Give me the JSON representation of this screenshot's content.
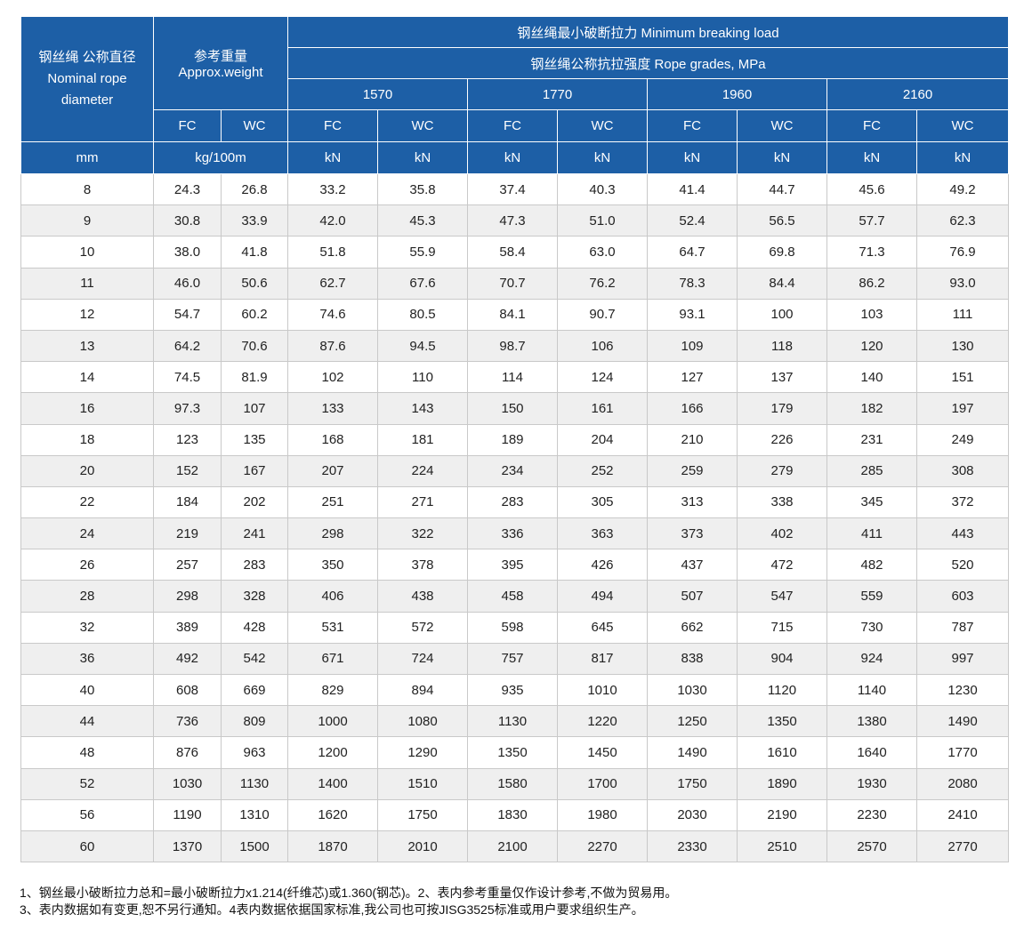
{
  "header": {
    "diameter_cn": "钢丝绳 公称直径",
    "diameter_en1": "Nominal rope",
    "diameter_en2": "diameter",
    "weight_cn": "参考重量",
    "weight_en": "Approx.weight",
    "mbl": "钢丝绳最小破断拉力 Minimum breaking load",
    "grades": "钢丝绳公称抗拉强度 Rope grades, MPa",
    "grade_values": [
      "1570",
      "1770",
      "1960",
      "2160"
    ],
    "core_labels": [
      "FC",
      "WC",
      "FC",
      "WC",
      "FC",
      "WC",
      "FC",
      "WC",
      "FC",
      "WC"
    ],
    "unit_diameter": "mm",
    "unit_weight": "kg/100m",
    "unit_load": [
      "kN",
      "kN",
      "kN",
      "kN",
      "kN",
      "kN",
      "kN",
      "kN"
    ]
  },
  "rows": [
    [
      "8",
      "24.3",
      "26.8",
      "33.2",
      "35.8",
      "37.4",
      "40.3",
      "41.4",
      "44.7",
      "45.6",
      "49.2"
    ],
    [
      "9",
      "30.8",
      "33.9",
      "42.0",
      "45.3",
      "47.3",
      "51.0",
      "52.4",
      "56.5",
      "57.7",
      "62.3"
    ],
    [
      "10",
      "38.0",
      "41.8",
      "51.8",
      "55.9",
      "58.4",
      "63.0",
      "64.7",
      "69.8",
      "71.3",
      "76.9"
    ],
    [
      "11",
      "46.0",
      "50.6",
      "62.7",
      "67.6",
      "70.7",
      "76.2",
      "78.3",
      "84.4",
      "86.2",
      "93.0"
    ],
    [
      "12",
      "54.7",
      "60.2",
      "74.6",
      "80.5",
      "84.1",
      "90.7",
      "93.1",
      "100",
      "103",
      "111"
    ],
    [
      "13",
      "64.2",
      "70.6",
      "87.6",
      "94.5",
      "98.7",
      "106",
      "109",
      "118",
      "120",
      "130"
    ],
    [
      "14",
      "74.5",
      "81.9",
      "102",
      "110",
      "114",
      "124",
      "127",
      "137",
      "140",
      "151"
    ],
    [
      "16",
      "97.3",
      "107",
      "133",
      "143",
      "150",
      "161",
      "166",
      "179",
      "182",
      "197"
    ],
    [
      "18",
      "123",
      "135",
      "168",
      "181",
      "189",
      "204",
      "210",
      "226",
      "231",
      "249"
    ],
    [
      "20",
      "152",
      "167",
      "207",
      "224",
      "234",
      "252",
      "259",
      "279",
      "285",
      "308"
    ],
    [
      "22",
      "184",
      "202",
      "251",
      "271",
      "283",
      "305",
      "313",
      "338",
      "345",
      "372"
    ],
    [
      "24",
      "219",
      "241",
      "298",
      "322",
      "336",
      "363",
      "373",
      "402",
      "411",
      "443"
    ],
    [
      "26",
      "257",
      "283",
      "350",
      "378",
      "395",
      "426",
      "437",
      "472",
      "482",
      "520"
    ],
    [
      "28",
      "298",
      "328",
      "406",
      "438",
      "458",
      "494",
      "507",
      "547",
      "559",
      "603"
    ],
    [
      "32",
      "389",
      "428",
      "531",
      "572",
      "598",
      "645",
      "662",
      "715",
      "730",
      "787"
    ],
    [
      "36",
      "492",
      "542",
      "671",
      "724",
      "757",
      "817",
      "838",
      "904",
      "924",
      "997"
    ],
    [
      "40",
      "608",
      "669",
      "829",
      "894",
      "935",
      "1010",
      "1030",
      "1120",
      "1140",
      "1230"
    ],
    [
      "44",
      "736",
      "809",
      "1000",
      "1080",
      "1130",
      "1220",
      "1250",
      "1350",
      "1380",
      "1490"
    ],
    [
      "48",
      "876",
      "963",
      "1200",
      "1290",
      "1350",
      "1450",
      "1490",
      "1610",
      "1640",
      "1770"
    ],
    [
      "52",
      "1030",
      "1130",
      "1400",
      "1510",
      "1580",
      "1700",
      "1750",
      "1890",
      "1930",
      "2080"
    ],
    [
      "56",
      "1190",
      "1310",
      "1620",
      "1750",
      "1830",
      "1980",
      "2030",
      "2190",
      "2230",
      "2410"
    ],
    [
      "60",
      "1370",
      "1500",
      "1870",
      "2010",
      "2100",
      "2270",
      "2330",
      "2510",
      "2570",
      "2770"
    ]
  ],
  "notes": [
    "1、钢丝最小破断拉力总和=最小破断拉力x1.214(纤维芯)或1.360(钢芯)。2、表内参考重量仅作设计参考,不做为贸易用。",
    "3、表内数据如有变更,恕不另行通知。4表内数据依据国家标准,我公司也可按JISG3525标准或用户要求组织生产。"
  ],
  "colors": {
    "header_bg": "#1d5fa6",
    "header_text": "#ffffff",
    "row_alt_bg": "#efefef"
  }
}
